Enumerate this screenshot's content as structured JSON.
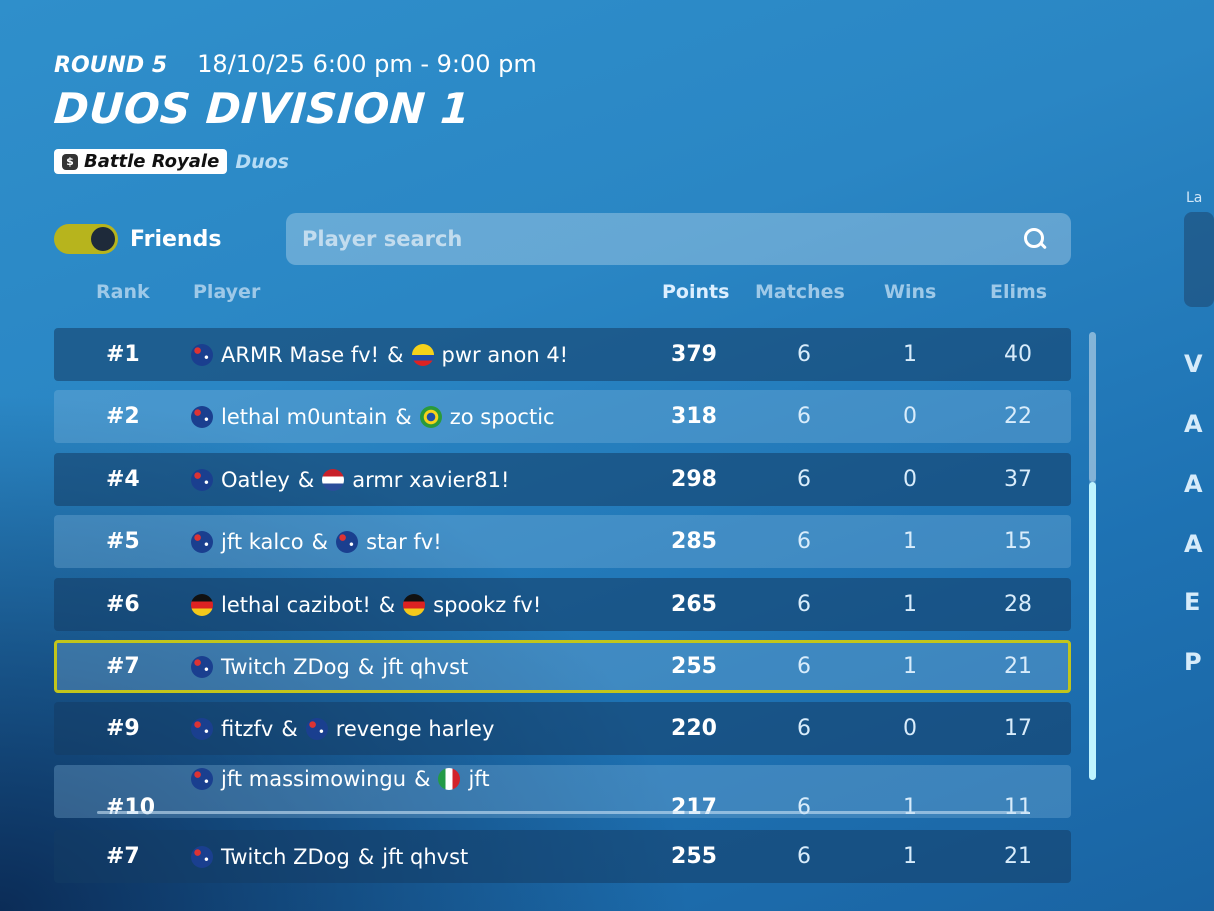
{
  "header": {
    "round": "ROUND 5",
    "datetime": "18/10/25 6:00 pm - 9:00 pm",
    "title": "DUOS DIVISION 1",
    "mode_tag": "Battle Royale",
    "sub_tag": "Duos"
  },
  "filters": {
    "friends_label": "Friends",
    "friends_toggle": "on",
    "search_placeholder": "Player search"
  },
  "columns": {
    "rank": "Rank",
    "player": "Player",
    "points": "Points",
    "matches": "Matches",
    "wins": "Wins",
    "elims": "Elims"
  },
  "rows": [
    {
      "rank": "#1",
      "p1": "ARMR Mase fv!",
      "p1_flag": "australia",
      "p2": "pwr anon 4!",
      "p2_flag": "colombia",
      "points": "379",
      "matches": "6",
      "wins": "1",
      "elims": "40"
    },
    {
      "rank": "#2",
      "p1": "lethal m0untain",
      "p1_flag": "australia",
      "p2": "zo spoctic",
      "p2_flag": "brazil",
      "points": "318",
      "matches": "6",
      "wins": "0",
      "elims": "22"
    },
    {
      "rank": "#4",
      "p1": "Oatley",
      "p1_flag": "australia",
      "p2": "armr xavier81!",
      "p2_flag": "netherlands",
      "points": "298",
      "matches": "6",
      "wins": "0",
      "elims": "37"
    },
    {
      "rank": "#5",
      "p1": "jft kalco",
      "p1_flag": "australia",
      "p2": "star fv!",
      "p2_flag": "australia",
      "points": "285",
      "matches": "6",
      "wins": "1",
      "elims": "15"
    },
    {
      "rank": "#6",
      "p1": "lethal cazibot!",
      "p1_flag": "germany",
      "p2": "spookz fv!",
      "p2_flag": "germany",
      "points": "265",
      "matches": "6",
      "wins": "1",
      "elims": "28"
    },
    {
      "rank": "#7",
      "p1": "Twitch ZDog",
      "p1_flag": "australia",
      "p2": "jft qhvst",
      "p2_flag": "",
      "points": "255",
      "matches": "6",
      "wins": "1",
      "elims": "21"
    },
    {
      "rank": "#9",
      "p1": "fitzfv",
      "p1_flag": "australia",
      "p2": "revenge harley",
      "p2_flag": "australia",
      "points": "220",
      "matches": "6",
      "wins": "0",
      "elims": "17"
    },
    {
      "rank": "#10",
      "p1": "jft massimowingu",
      "p1_flag": "australia",
      "p2": "jft",
      "p2_flag": "italy",
      "points": "217",
      "matches": "6",
      "wins": "1",
      "elims": "11"
    }
  ],
  "pinned": {
    "rank": "#7",
    "p1": "Twitch ZDog",
    "p1_flag": "australia",
    "p2": "jft qhvst",
    "points": "255",
    "matches": "6",
    "wins": "1",
    "elims": "21"
  },
  "side": {
    "label": "La",
    "letters": [
      "V",
      "A",
      "A",
      "A",
      "E",
      "P"
    ]
  },
  "colors": {
    "highlight_border": "#c2c51c",
    "toggle_on": "#b7b41d"
  }
}
